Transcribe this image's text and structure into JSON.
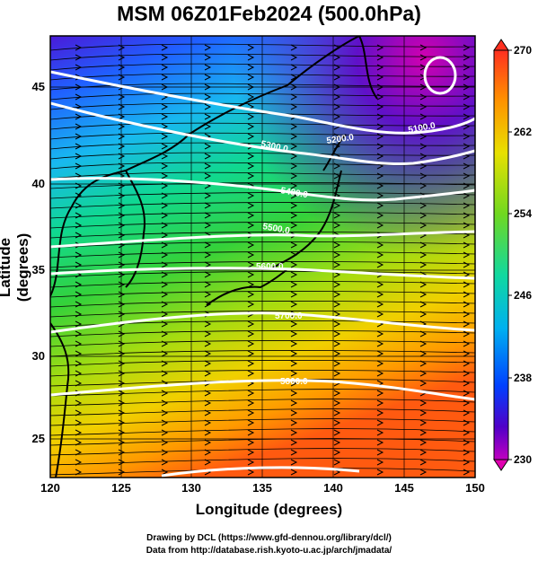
{
  "title": "MSM 06Z01Feb2024 (500.0hPa)",
  "xlabel": "Longitude (degrees)",
  "ylabel": "Latitude  (degrees)",
  "x_ticks": [
    "120",
    "125",
    "130",
    "135",
    "140",
    "145",
    "150"
  ],
  "y_ticks": [
    "25",
    "30",
    "35",
    "40",
    "45"
  ],
  "colorbar_ticks": [
    "270",
    "262",
    "254",
    "246",
    "238",
    "230"
  ],
  "contour_labels": [
    "5100.0",
    "5200.0",
    "5300.0",
    "5400.0",
    "5500.0",
    "5600.0",
    "5700.0",
    "5800.0"
  ],
  "credit_line1": "Drawing by DCL (https://www.gfd-dennou.org/library/dcl/)",
  "credit_line2": "Data from http://database.rish.kyoto-u.ac.jp/arch/jmadata/",
  "map_data": {
    "type": "filled-contour-with-streamlines",
    "variable_range": [
      230,
      270
    ],
    "colormap": [
      "#d0009f",
      "#2000c0",
      "#0050ff",
      "#00c8e8",
      "#20d040",
      "#d8e400",
      "#ff9000",
      "#ff3030"
    ],
    "lon_range": [
      120,
      150
    ],
    "lat_range": [
      22.5,
      48
    ]
  }
}
